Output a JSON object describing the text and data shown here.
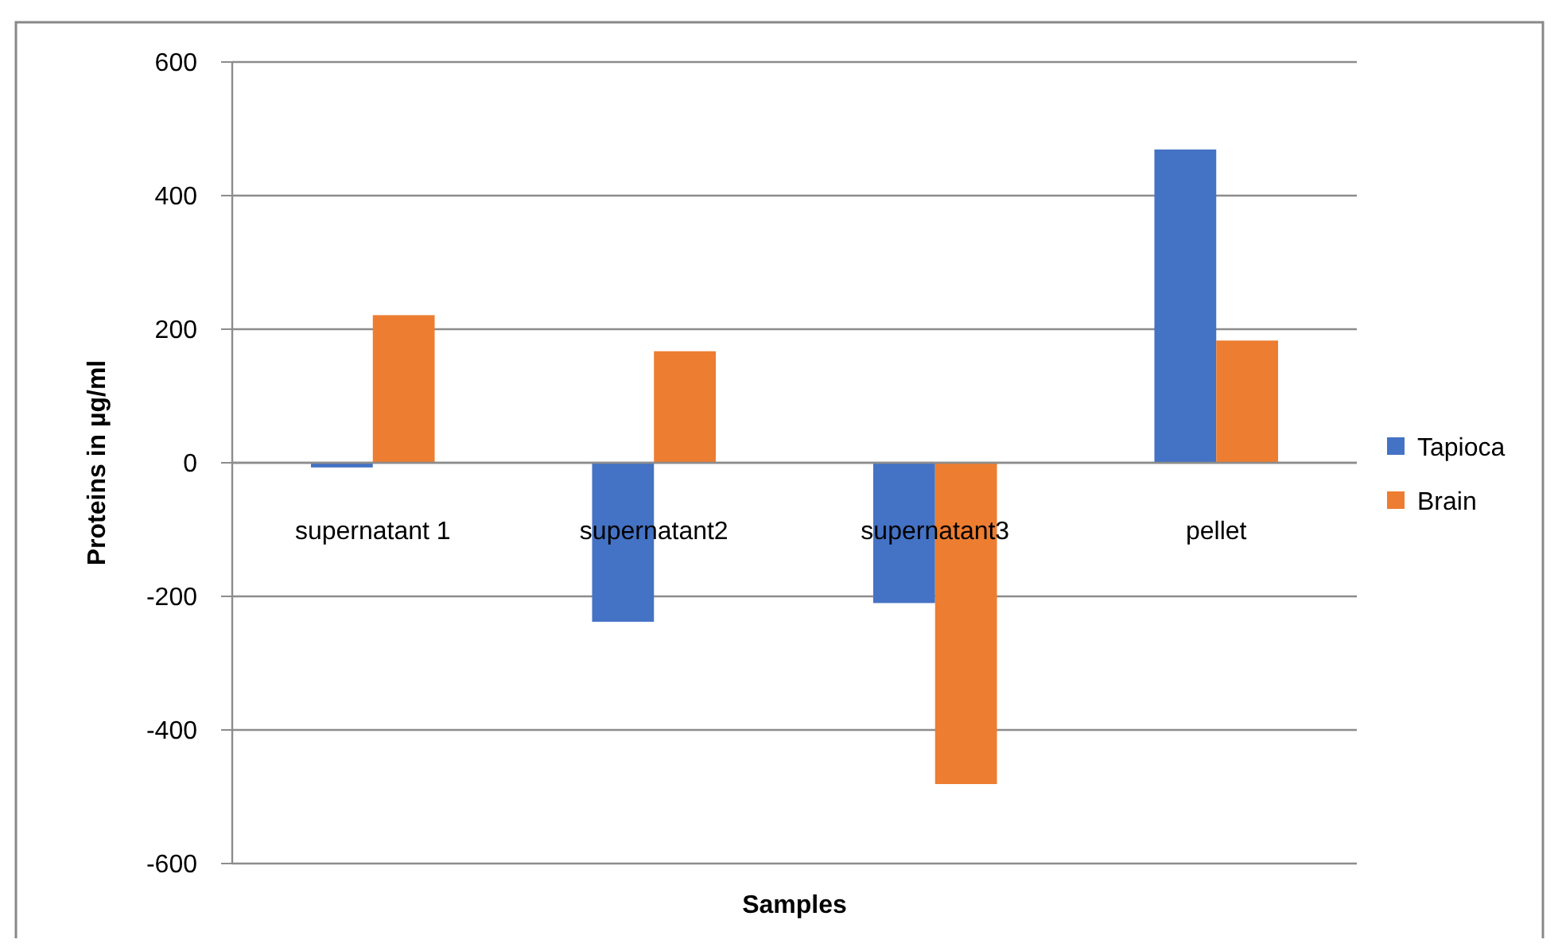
{
  "chart_data": {
    "type": "bar",
    "xlabel": "Samples",
    "ylabel": "Proteins in µg/ml",
    "categories": [
      "supernatant 1",
      "supernatant2",
      "supernatant3",
      "pellet"
    ],
    "series": [
      {
        "name": "Tapioca",
        "color": "#4472c4",
        "values": [
          -7,
          -238,
          -210,
          469
        ]
      },
      {
        "name": "Brain",
        "color": "#ed7d31",
        "values": [
          221,
          167,
          -481,
          183
        ]
      }
    ],
    "ylim": [
      -600,
      600
    ],
    "yticks": [
      -600,
      -400,
      -200,
      0,
      200,
      400,
      600
    ],
    "grid": "y",
    "legend": "right"
  }
}
